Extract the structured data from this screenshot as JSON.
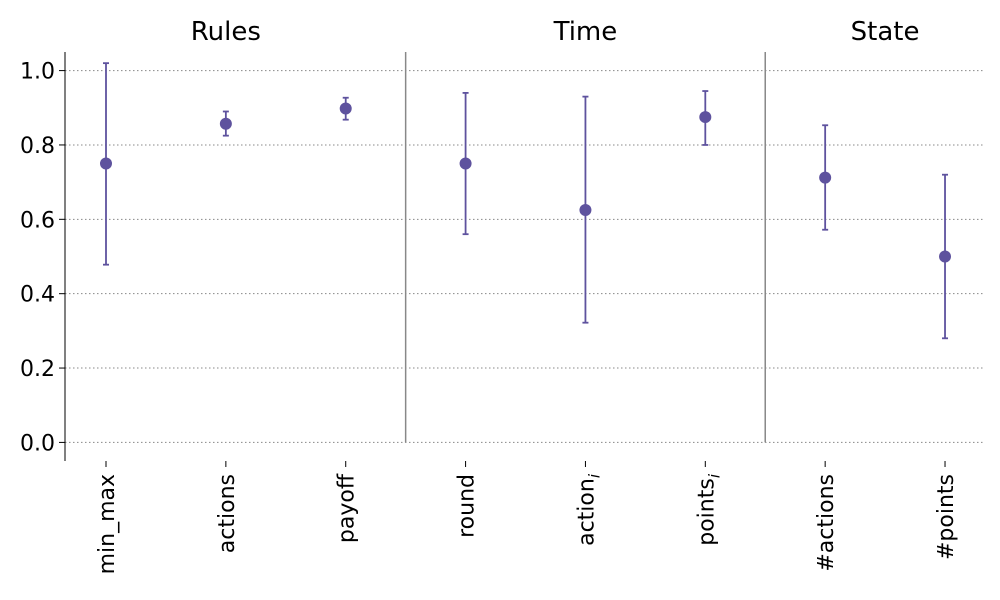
{
  "chart_data": {
    "type": "scatter",
    "style": "point-with-error-bars",
    "groups": [
      {
        "title": "Rules",
        "categories": [
          "min_max",
          "actions",
          "payoff"
        ]
      },
      {
        "title": "Time",
        "categories": [
          "round",
          "action",
          "points"
        ]
      },
      {
        "title": "State",
        "categories": [
          "#actions",
          "#points"
        ]
      }
    ],
    "category_subscripts": {
      "action": "i",
      "points": "i"
    },
    "points": [
      {
        "category": "min_max",
        "value": 0.75,
        "lower": 0.478,
        "upper": 1.02
      },
      {
        "category": "actions",
        "value": 0.857,
        "lower": 0.825,
        "upper": 0.89
      },
      {
        "category": "payoff",
        "value": 0.898,
        "lower": 0.868,
        "upper": 0.927
      },
      {
        "category": "round",
        "value": 0.75,
        "lower": 0.56,
        "upper": 0.94
      },
      {
        "category": "action",
        "value": 0.625,
        "lower": 0.322,
        "upper": 0.93
      },
      {
        "category": "points",
        "value": 0.875,
        "lower": 0.8,
        "upper": 0.945
      },
      {
        "category": "#actions",
        "value": 0.712,
        "lower": 0.572,
        "upper": 0.853
      },
      {
        "category": "#points",
        "value": 0.5,
        "lower": 0.28,
        "upper": 0.72
      }
    ],
    "yticks": [
      "0.0",
      "0.2",
      "0.4",
      "0.6",
      "0.8",
      "1.0"
    ],
    "ylim": [
      -0.05,
      1.05
    ],
    "grid": "horizontal dotted",
    "marker_color": "#5e529e",
    "errorbar_color": "#5e529e",
    "separator_color": "#888888",
    "grid_color": "#888888",
    "title": "",
    "xlabel": "",
    "ylabel": ""
  }
}
